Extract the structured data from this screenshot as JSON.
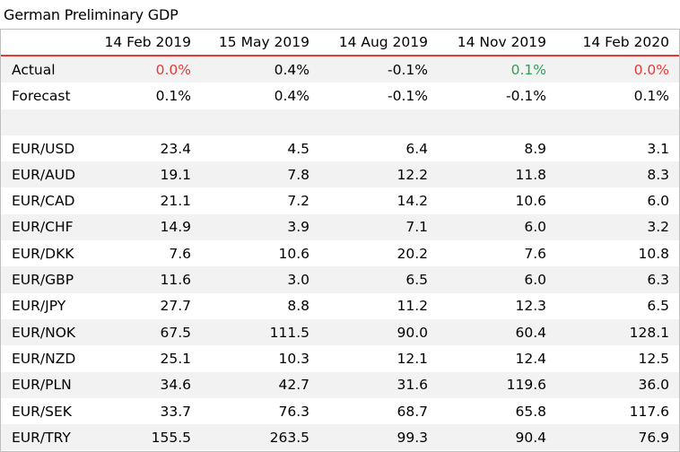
{
  "title": "German Preliminary GDP",
  "columns": [
    "14 Feb 2019",
    "15 May 2019",
    "14 Aug 2019",
    "14 Nov 2019",
    "14 Feb 2020"
  ],
  "rows": [
    {
      "label": "Actual",
      "values": [
        "0.0%",
        "0.4%",
        "-0.1%",
        "0.1%",
        "0.0%"
      ],
      "colors": [
        "red",
        "",
        "",
        "green",
        "red"
      ]
    },
    {
      "label": "Forecast",
      "values": [
        "0.1%",
        "0.4%",
        "-0.1%",
        "-0.1%",
        "0.1%"
      ]
    },
    {
      "label": "",
      "values": [
        "",
        "",
        "",
        "",
        ""
      ]
    },
    {
      "label": "EUR/USD",
      "values": [
        "23.4",
        "4.5",
        "6.4",
        "8.9",
        "3.1"
      ]
    },
    {
      "label": "EUR/AUD",
      "values": [
        "19.1",
        "7.8",
        "12.2",
        "11.8",
        "8.3"
      ]
    },
    {
      "label": "EUR/CAD",
      "values": [
        "21.1",
        "7.2",
        "14.2",
        "10.6",
        "6.0"
      ]
    },
    {
      "label": "EUR/CHF",
      "values": [
        "14.9",
        "3.9",
        "7.1",
        "6.0",
        "3.2"
      ]
    },
    {
      "label": "EUR/DKK",
      "values": [
        "7.6",
        "10.6",
        "20.2",
        "7.6",
        "10.8"
      ]
    },
    {
      "label": "EUR/GBP",
      "values": [
        "11.6",
        "3.0",
        "6.5",
        "6.0",
        "6.3"
      ]
    },
    {
      "label": "EUR/JPY",
      "values": [
        "27.7",
        "8.8",
        "11.2",
        "12.3",
        "6.5"
      ]
    },
    {
      "label": "EUR/NOK",
      "values": [
        "67.5",
        "111.5",
        "90.0",
        "60.4",
        "128.1"
      ]
    },
    {
      "label": "EUR/NZD",
      "values": [
        "25.1",
        "10.3",
        "12.1",
        "12.4",
        "12.5"
      ]
    },
    {
      "label": "EUR/PLN",
      "values": [
        "34.6",
        "42.7",
        "31.6",
        "119.6",
        "36.0"
      ]
    },
    {
      "label": "EUR/SEK",
      "values": [
        "33.7",
        "76.3",
        "68.7",
        "65.8",
        "117.6"
      ]
    },
    {
      "label": "EUR/TRY",
      "values": [
        "155.5",
        "263.5",
        "99.3",
        "90.4",
        "76.9"
      ]
    }
  ],
  "colors": {
    "red": "#e53935",
    "green": "#2ca05a",
    "stripe": "#f2f2f2",
    "rule": "#e53935"
  }
}
